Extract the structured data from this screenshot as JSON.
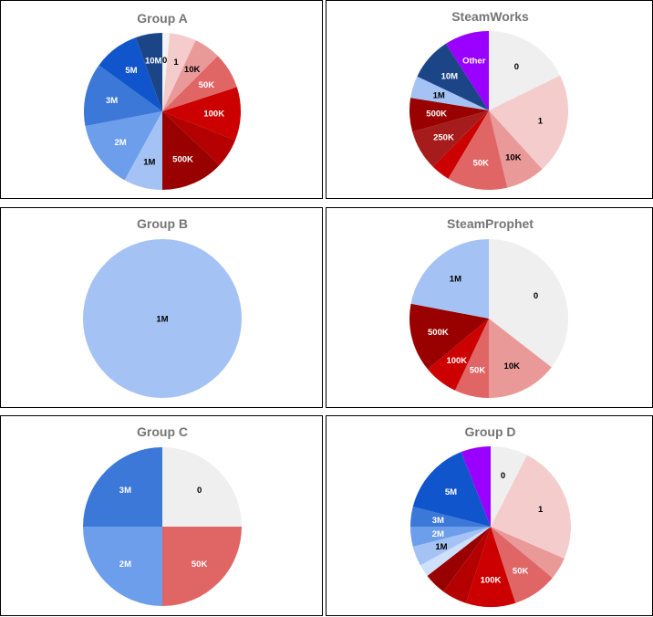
{
  "chart_data": [
    {
      "type": "pie",
      "title": "Group A",
      "slices": [
        {
          "label": "0",
          "value": 1.5,
          "color": "#f3f3f3"
        },
        {
          "label": "1",
          "value": 5.5,
          "color": "#f4cccc"
        },
        {
          "label": "10K",
          "value": 5.5,
          "color": "#ea9999"
        },
        {
          "label": "50K",
          "value": 7.5,
          "color": "#e06666"
        },
        {
          "label": "100K",
          "value": 11,
          "color": "#cc0000"
        },
        {
          "label": "",
          "value": 6,
          "color": "#b40000"
        },
        {
          "label": "500K",
          "value": 13,
          "color": "#990000"
        },
        {
          "label": "1M",
          "value": 8,
          "color": "#a4c2f4"
        },
        {
          "label": "2M",
          "value": 14,
          "color": "#6d9eeb"
        },
        {
          "label": "3M",
          "value": 13,
          "color": "#3c78d8"
        },
        {
          "label": "5M",
          "value": 9.5,
          "color": "#1155cc"
        },
        {
          "label": "10M",
          "value": 5.5,
          "color": "#1c4587"
        }
      ]
    },
    {
      "type": "pie",
      "title": "SteamWorks",
      "slices": [
        {
          "label": "0",
          "value": 17.3,
          "color": "#efefef"
        },
        {
          "label": "1",
          "value": 20,
          "color": "#f4cccc"
        },
        {
          "label": "10K",
          "value": 7.8,
          "color": "#ea9999"
        },
        {
          "label": "50K",
          "value": 12,
          "color": "#e06666"
        },
        {
          "label": "",
          "value": 3.8,
          "color": "#cc0000"
        },
        {
          "label": "250K",
          "value": 8,
          "color": "#a61c1c"
        },
        {
          "label": "500K",
          "value": 6.7,
          "color": "#990000"
        },
        {
          "label": "1M",
          "value": 4.4,
          "color": "#a4c2f4"
        },
        {
          "label": "10M",
          "value": 8.6,
          "color": "#1c4587"
        },
        {
          "label": "Other",
          "value": 8.9,
          "color": "#9900ff"
        }
      ]
    },
    {
      "type": "pie",
      "title": "Group B",
      "slices": [
        {
          "label": "1M",
          "value": 100,
          "color": "#a4c2f4"
        }
      ]
    },
    {
      "type": "pie",
      "title": "SteamProphet",
      "slices": [
        {
          "label": "0",
          "value": 35.5,
          "color": "#efefef"
        },
        {
          "label": "10K",
          "value": 14.5,
          "color": "#ea9999"
        },
        {
          "label": "50K",
          "value": 7,
          "color": "#e06666"
        },
        {
          "label": "100K",
          "value": 7,
          "color": "#cc0000"
        },
        {
          "label": "500K",
          "value": 14,
          "color": "#990000"
        },
        {
          "label": "1M",
          "value": 22,
          "color": "#a4c2f4"
        }
      ]
    },
    {
      "type": "pie",
      "title": "Group C",
      "slices": [
        {
          "label": "0",
          "value": 25,
          "color": "#efefef"
        },
        {
          "label": "50K",
          "value": 25,
          "color": "#e06666"
        },
        {
          "label": "2M",
          "value": 25,
          "color": "#6d9eeb"
        },
        {
          "label": "3M",
          "value": 25,
          "color": "#3c78d8"
        }
      ]
    },
    {
      "type": "pie",
      "title": "Group D",
      "slices": [
        {
          "label": "0",
          "value": 7.5,
          "color": "#efefef"
        },
        {
          "label": "1",
          "value": 24,
          "color": "#f4cccc"
        },
        {
          "label": "",
          "value": 4.5,
          "color": "#ea9999"
        },
        {
          "label": "50K",
          "value": 9,
          "color": "#e06666"
        },
        {
          "label": "100K",
          "value": 10,
          "color": "#cc0000"
        },
        {
          "label": "",
          "value": 5,
          "color": "#b40000"
        },
        {
          "label": "",
          "value": 4.5,
          "color": "#990000"
        },
        {
          "label": "",
          "value": 2.5,
          "color": "#cfe0fa"
        },
        {
          "label": "1M",
          "value": 4,
          "color": "#a4c2f4"
        },
        {
          "label": "2M",
          "value": 4,
          "color": "#6d9eeb"
        },
        {
          "label": "3M",
          "value": 4,
          "color": "#3c78d8"
        },
        {
          "label": "5M",
          "value": 15,
          "color": "#1155cc"
        },
        {
          "label": "",
          "value": 6,
          "color": "#9900ff"
        }
      ]
    }
  ]
}
